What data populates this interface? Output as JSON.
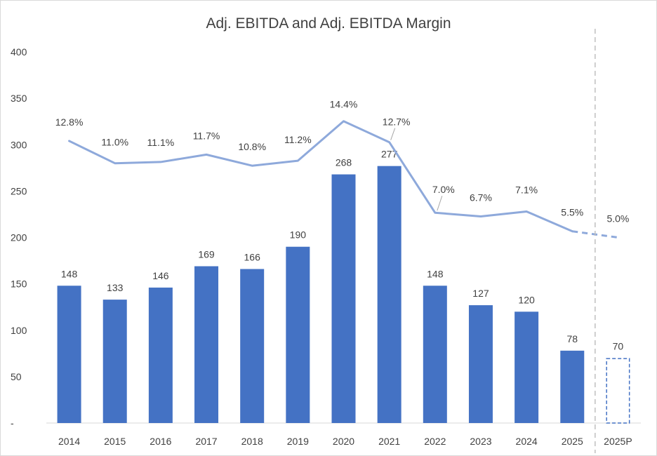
{
  "chart_data": {
    "type": "bar",
    "title": "Adj. EBITDA and Adj. EBITDA Margin",
    "categories": [
      "2014",
      "2015",
      "2016",
      "2017",
      "2018",
      "2019",
      "2020",
      "2021",
      "2022",
      "2023",
      "2024",
      "2025",
      "2025P"
    ],
    "series": [
      {
        "name": "Adj. EBITDA",
        "type": "bar",
        "values": [
          148,
          133,
          146,
          169,
          166,
          190,
          268,
          277,
          148,
          127,
          120,
          78,
          70
        ],
        "labels": [
          "148",
          "133",
          "146",
          "169",
          "166",
          "190",
          "268",
          "277",
          "148",
          "127",
          "120",
          "78",
          "70"
        ],
        "projected": [
          false,
          false,
          false,
          false,
          false,
          false,
          false,
          false,
          false,
          false,
          false,
          false,
          true
        ],
        "color": "#4472C4"
      },
      {
        "name": "Adj. EBITDA Margin",
        "type": "line",
        "values": [
          12.8,
          11.0,
          11.1,
          11.7,
          10.8,
          11.2,
          14.4,
          12.7,
          7.0,
          6.7,
          7.1,
          5.5,
          5.0
        ],
        "labels": [
          "12.8%",
          "11.0%",
          "11.1%",
          "11.7%",
          "10.8%",
          "11.2%",
          "14.4%",
          "12.7%",
          "7.0%",
          "6.7%",
          "7.1%",
          "5.5%",
          "5.0%"
        ],
        "projected_from_index": 11,
        "color": "#8EA9DB"
      }
    ],
    "y_axis": {
      "range": [
        0,
        400
      ],
      "ticks": [
        0,
        50,
        100,
        150,
        200,
        250,
        300,
        350,
        400
      ],
      "tick_labels": [
        "-",
        "50",
        "100",
        "150",
        "200",
        "250",
        "300",
        "350",
        "400"
      ]
    },
    "margin_axis_range_pct": [
      -10,
      20
    ],
    "grid": false,
    "legend": "none",
    "separator_before": "2025P"
  }
}
